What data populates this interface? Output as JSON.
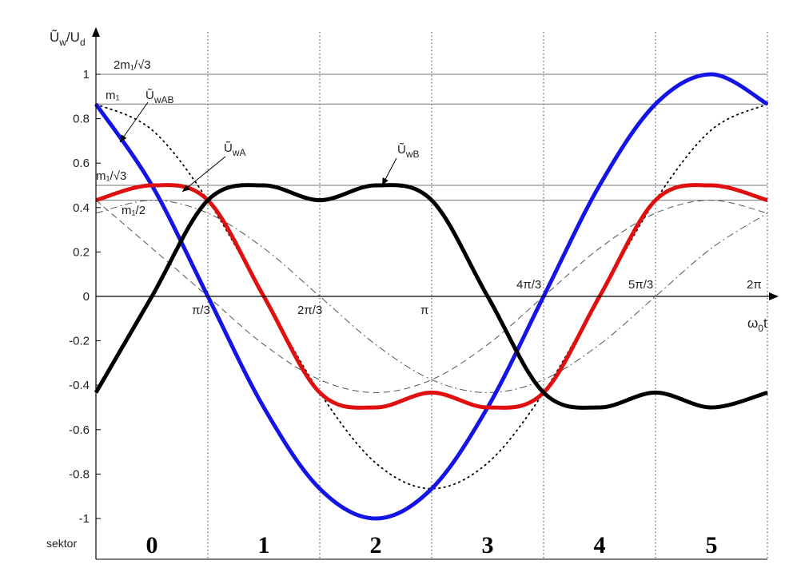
{
  "chart_data": {
    "type": "line",
    "ylabel": {
      "main": "Ũ",
      "sub1": "w",
      "mid": "/U",
      "sub2": "d"
    },
    "xlabel": {
      "main": "ω",
      "sub": "0",
      "tail": "t"
    },
    "ylim": [
      -1.0,
      1.0
    ],
    "xlim_sector_units": [
      0,
      6
    ],
    "y_ticks": [
      {
        "value": 1.0,
        "label": "1"
      },
      {
        "value": 0.8,
        "label": "0.8"
      },
      {
        "value": 0.6,
        "label": "0.6"
      },
      {
        "value": 0.4,
        "label": "0.4"
      },
      {
        "value": 0.2,
        "label": "0.2"
      },
      {
        "value": 0.0,
        "label": "0"
      },
      {
        "value": -0.2,
        "label": "-0.2"
      },
      {
        "value": -0.4,
        "label": "-0.4"
      },
      {
        "value": -0.6,
        "label": "-0.6"
      },
      {
        "value": -0.8,
        "label": "-0.8"
      },
      {
        "value": -1.0,
        "label": "-1"
      }
    ],
    "x_ticks": [
      {
        "at": 1,
        "label": "π/3"
      },
      {
        "at": 2,
        "label": "2π/3"
      },
      {
        "at": 3,
        "label": "π"
      },
      {
        "at": 4,
        "label": "4π/3"
      },
      {
        "at": 5,
        "label": "5π/3"
      },
      {
        "at": 6,
        "label": "2π"
      }
    ],
    "sector_label": "sektor",
    "sectors": [
      "0",
      "1",
      "2",
      "3",
      "4",
      "5"
    ],
    "reference_lines": [
      {
        "value": 1.0,
        "label": "2m₁/√3"
      },
      {
        "value": 0.866,
        "label": "m₁"
      },
      {
        "value": 0.5,
        "label": "m₁/√3"
      },
      {
        "value": 0.433,
        "label": "m₁/2"
      }
    ],
    "annotations": [
      {
        "label_main": "Ũ",
        "label_sub": "wAB",
        "series": "U_wAB"
      },
      {
        "label_main": "Ũ",
        "label_sub": "wA",
        "series": "U_wA"
      },
      {
        "label_main": "Ũ",
        "label_sub": "wB",
        "series": "U_wB"
      }
    ],
    "series": [
      {
        "id": "U_wAB",
        "color": "#1414e6",
        "style": "thick",
        "x": [
          0,
          0.5,
          1,
          1.5,
          2,
          2.5,
          3,
          3.5,
          4,
          4.5,
          5,
          5.5,
          6
        ],
        "y": [
          0.866,
          0.5,
          0.0,
          -0.5,
          -0.866,
          -1.0,
          -0.866,
          -0.5,
          0.0,
          0.5,
          0.866,
          1.0,
          0.866
        ]
      },
      {
        "id": "U_wA",
        "color": "#e01010",
        "style": "thick",
        "x": [
          0,
          0.5,
          1,
          1.5,
          2,
          2.5,
          3,
          3.5,
          4,
          4.5,
          5,
          5.5,
          6
        ],
        "y": [
          0.433,
          0.5,
          0.433,
          0.0,
          -0.433,
          -0.5,
          -0.433,
          -0.5,
          -0.433,
          0.0,
          0.433,
          0.5,
          0.433
        ]
      },
      {
        "id": "U_wB",
        "color": "#000000",
        "style": "thick",
        "x": [
          0,
          0.5,
          1,
          1.5,
          2,
          2.5,
          3,
          3.5,
          4,
          4.5,
          5,
          5.5,
          6
        ],
        "y": [
          -0.433,
          0.0,
          0.433,
          0.5,
          0.433,
          0.5,
          0.433,
          0.0,
          -0.433,
          -0.5,
          -0.433,
          -0.5,
          -0.433
        ]
      },
      {
        "id": "m1_cos_dotted",
        "color": "#000000",
        "style": "dotted",
        "x": [
          0,
          0.5,
          1,
          1.5,
          2,
          2.5,
          3,
          3.5,
          4,
          4.5,
          5,
          5.5,
          6
        ],
        "y": [
          0.866,
          0.75,
          0.433,
          0.0,
          -0.433,
          -0.75,
          -0.866,
          -0.75,
          -0.433,
          0.0,
          0.433,
          0.75,
          0.866
        ]
      },
      {
        "id": "half_m1_dashed",
        "color": "#000000",
        "style": "dashed",
        "x": [
          0,
          0.5,
          1,
          1.5,
          2,
          2.5,
          3,
          3.5,
          4,
          4.5,
          5,
          5.5,
          6
        ],
        "y": [
          0.433,
          0.217,
          -0.0,
          -0.217,
          -0.375,
          -0.433,
          -0.375,
          -0.217,
          0.0,
          0.217,
          0.375,
          0.433,
          0.375
        ]
      },
      {
        "id": "half_m1_dashdot",
        "color": "#000000",
        "style": "dashdot",
        "x": [
          0,
          0.5,
          1,
          1.5,
          2,
          2.5,
          3,
          3.5,
          4,
          4.5,
          5,
          5.5,
          6
        ],
        "y": [
          0.375,
          0.433,
          0.375,
          0.217,
          0.0,
          -0.217,
          -0.375,
          -0.433,
          -0.375,
          -0.217,
          0.0,
          0.217,
          0.375
        ]
      }
    ],
    "grid": "vertical dotted at sector boundaries"
  }
}
